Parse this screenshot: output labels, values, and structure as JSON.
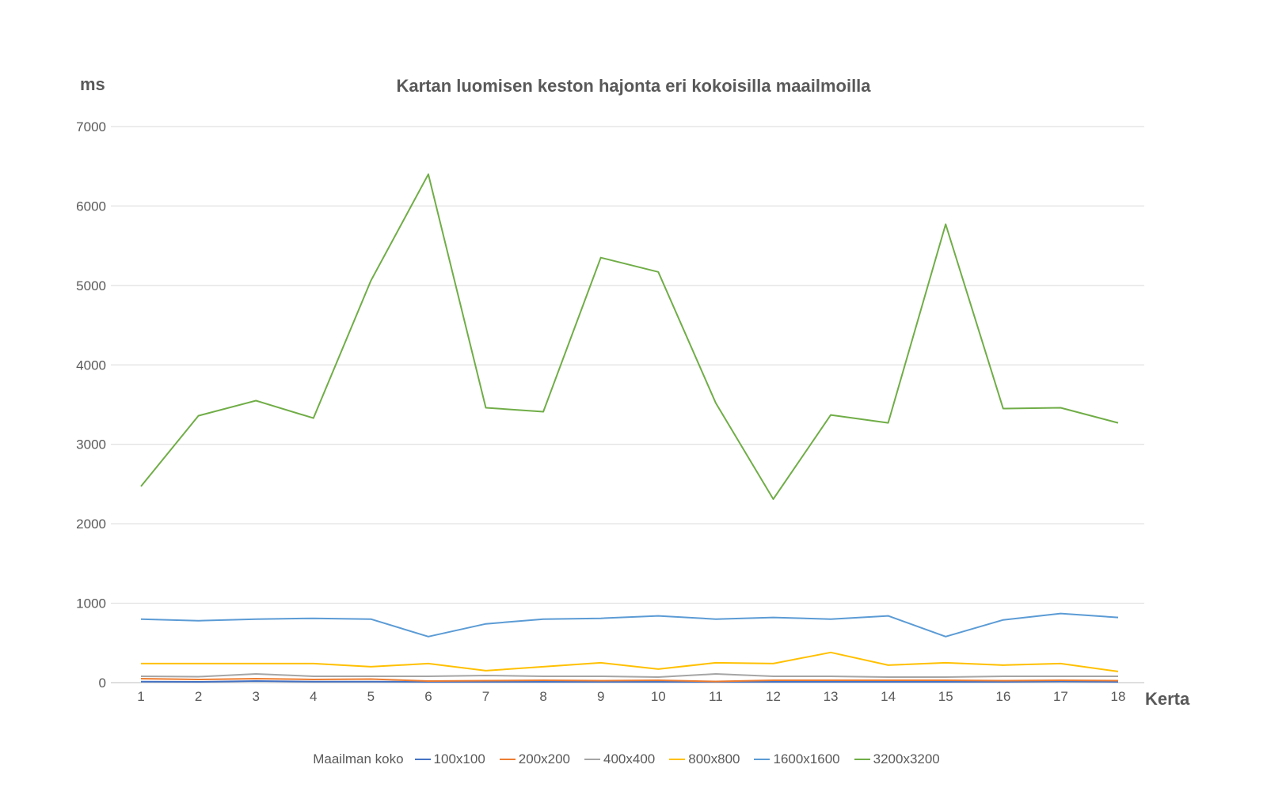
{
  "chart_data": {
    "type": "line",
    "title": "Kartan luomisen keston hajonta eri kokoisilla maailmoilla",
    "ylabel": "ms",
    "xlabel": "Kerta",
    "ylim": [
      0,
      7000
    ],
    "yticks": [
      "0",
      "1000",
      "2000",
      "3000",
      "4000",
      "5000",
      "6000",
      "7000"
    ],
    "categories": [
      "1",
      "2",
      "3",
      "4",
      "5",
      "6",
      "7",
      "8",
      "9",
      "10",
      "11",
      "12",
      "13",
      "14",
      "15",
      "16",
      "17",
      "18"
    ],
    "grid": true,
    "legend_position": "bottom",
    "legend_title": "Maailman koko",
    "series": [
      {
        "name": "100x100",
        "color": "#4472C4",
        "values": [
          12,
          10,
          20,
          12,
          12,
          10,
          10,
          10,
          10,
          10,
          10,
          10,
          10,
          10,
          10,
          10,
          15,
          10
        ]
      },
      {
        "name": "200x200",
        "color": "#ED7D31",
        "values": [
          50,
          40,
          50,
          40,
          45,
          20,
          25,
          30,
          25,
          30,
          15,
          30,
          30,
          30,
          30,
          25,
          30,
          25
        ]
      },
      {
        "name": "400x400",
        "color": "#A5A5A5",
        "values": [
          80,
          75,
          110,
          80,
          80,
          80,
          90,
          80,
          80,
          70,
          110,
          80,
          80,
          70,
          70,
          80,
          80,
          80
        ]
      },
      {
        "name": "800x800",
        "color": "#FFC000",
        "values": [
          240,
          240,
          240,
          240,
          200,
          240,
          150,
          200,
          250,
          170,
          250,
          240,
          380,
          220,
          250,
          220,
          240,
          140
        ]
      },
      {
        "name": "1600x1600",
        "color": "#5B9BD5",
        "values": [
          800,
          780,
          800,
          810,
          800,
          580,
          740,
          800,
          810,
          840,
          800,
          820,
          800,
          840,
          580,
          790,
          870,
          820
        ]
      },
      {
        "name": "3200x3200",
        "color": "#70AD47",
        "values": [
          2470,
          3360,
          3550,
          3330,
          5060,
          6400,
          3460,
          3410,
          5350,
          5170,
          3520,
          2310,
          3370,
          3270,
          5770,
          3450,
          3460,
          3270
        ]
      }
    ]
  }
}
